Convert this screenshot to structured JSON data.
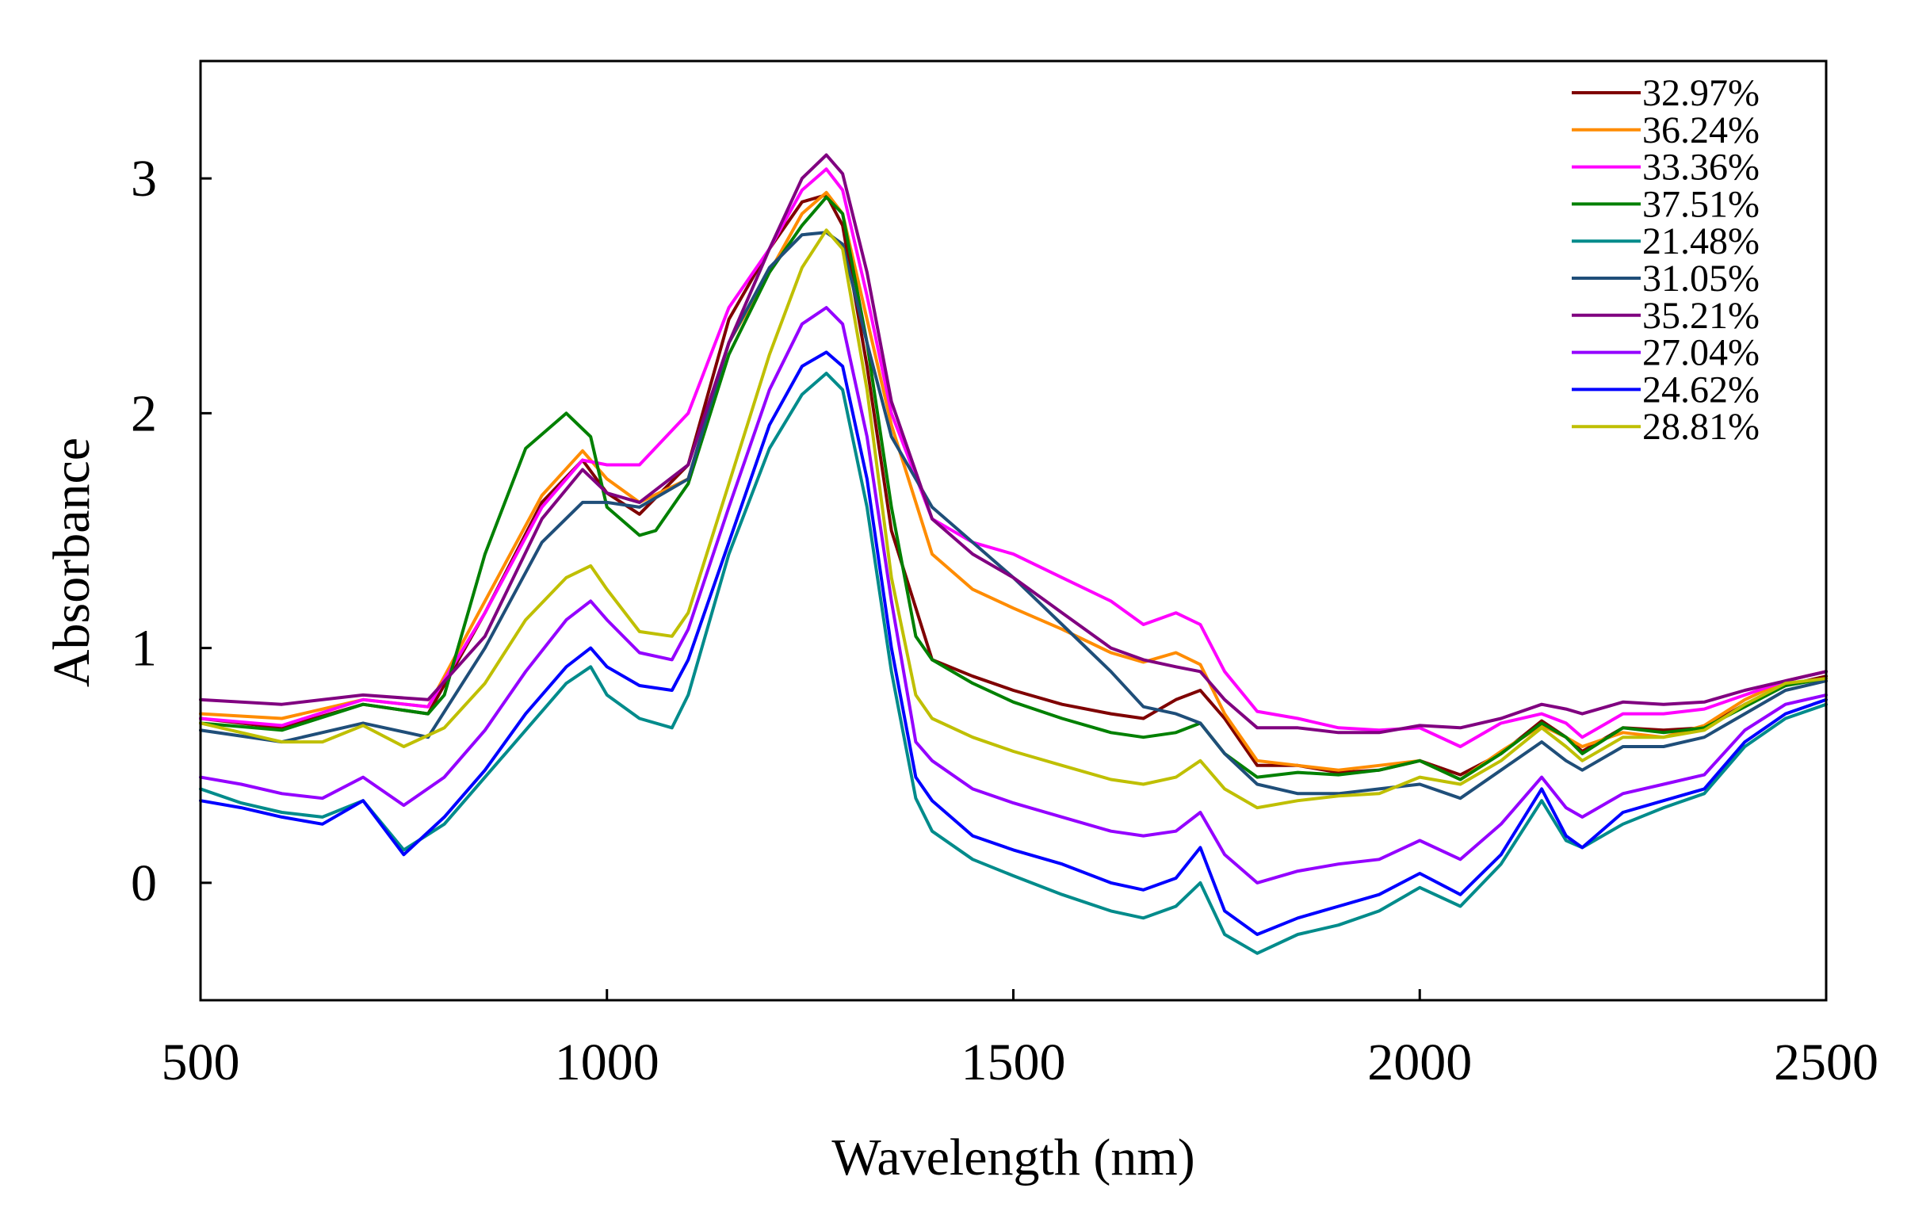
{
  "chart_data": {
    "type": "line",
    "title": "",
    "xlabel": "Wavelength  (nm)",
    "ylabel": "Absorbance",
    "xlim": [
      500,
      2500
    ],
    "ylim": [
      -0.5,
      3.5
    ],
    "xticks": [
      "500",
      "1000",
      "1500",
      "2000",
      "2500"
    ],
    "yticks": [
      "0",
      "1",
      "2",
      "3"
    ],
    "grid": false,
    "legend_position": "top-right",
    "series": [
      {
        "name": "32.97%",
        "color": "#7f0000",
        "x": [
          500,
          600,
          700,
          780,
          850,
          920,
          970,
          1000,
          1040,
          1100,
          1150,
          1200,
          1240,
          1270,
          1290,
          1320,
          1350,
          1400,
          1450,
          1500,
          1560,
          1620,
          1660,
          1700,
          1730,
          1760,
          1800,
          1850,
          1900,
          1950,
          2000,
          2050,
          2100,
          2150,
          2180,
          2200,
          2250,
          2300,
          2350,
          2400,
          2450,
          2500
        ],
        "y": [
          0.7,
          0.66,
          0.76,
          0.72,
          1.15,
          1.62,
          1.8,
          1.66,
          1.57,
          1.78,
          2.4,
          2.7,
          2.9,
          2.93,
          2.8,
          2.2,
          1.5,
          0.95,
          0.88,
          0.82,
          0.76,
          0.72,
          0.7,
          0.78,
          0.82,
          0.7,
          0.5,
          0.5,
          0.47,
          0.48,
          0.52,
          0.46,
          0.55,
          0.69,
          0.62,
          0.56,
          0.66,
          0.65,
          0.66,
          0.76,
          0.84,
          0.88
        ]
      },
      {
        "name": "36.24%",
        "color": "#ff8c00",
        "x": [
          500,
          600,
          700,
          780,
          850,
          920,
          970,
          1000,
          1040,
          1100,
          1150,
          1200,
          1240,
          1270,
          1290,
          1320,
          1350,
          1400,
          1450,
          1500,
          1560,
          1620,
          1660,
          1700,
          1730,
          1760,
          1800,
          1850,
          1900,
          1950,
          2000,
          2050,
          2100,
          2150,
          2180,
          2200,
          2250,
          2300,
          2350,
          2400,
          2450,
          2500
        ],
        "y": [
          0.72,
          0.7,
          0.78,
          0.75,
          1.2,
          1.65,
          1.84,
          1.72,
          1.62,
          1.72,
          2.3,
          2.6,
          2.85,
          2.94,
          2.85,
          2.4,
          1.95,
          1.4,
          1.25,
          1.17,
          1.08,
          0.98,
          0.94,
          0.98,
          0.93,
          0.72,
          0.52,
          0.5,
          0.48,
          0.5,
          0.52,
          0.44,
          0.56,
          0.67,
          0.62,
          0.58,
          0.64,
          0.62,
          0.67,
          0.78,
          0.86,
          0.9
        ]
      },
      {
        "name": "33.36%",
        "color": "#ff00ff",
        "x": [
          500,
          600,
          700,
          780,
          850,
          920,
          970,
          1000,
          1040,
          1100,
          1150,
          1200,
          1240,
          1270,
          1290,
          1320,
          1350,
          1400,
          1450,
          1500,
          1560,
          1620,
          1660,
          1700,
          1730,
          1760,
          1800,
          1850,
          1900,
          1950,
          2000,
          2050,
          2100,
          2150,
          2180,
          2200,
          2250,
          2300,
          2350,
          2400,
          2450,
          2500
        ],
        "y": [
          0.7,
          0.67,
          0.78,
          0.75,
          1.15,
          1.6,
          1.8,
          1.78,
          1.78,
          2.0,
          2.45,
          2.7,
          2.95,
          3.04,
          2.95,
          2.5,
          2.0,
          1.55,
          1.45,
          1.4,
          1.3,
          1.2,
          1.1,
          1.15,
          1.1,
          0.9,
          0.73,
          0.7,
          0.66,
          0.65,
          0.66,
          0.58,
          0.68,
          0.72,
          0.68,
          0.62,
          0.72,
          0.72,
          0.74,
          0.8,
          0.86,
          0.9
        ]
      },
      {
        "name": "37.51%",
        "color": "#008000",
        "x": [
          500,
          600,
          700,
          780,
          800,
          850,
          900,
          950,
          980,
          1000,
          1040,
          1060,
          1100,
          1150,
          1200,
          1240,
          1270,
          1290,
          1320,
          1350,
          1380,
          1400,
          1450,
          1500,
          1560,
          1620,
          1660,
          1700,
          1730,
          1760,
          1800,
          1850,
          1900,
          1950,
          2000,
          2050,
          2100,
          2150,
          2180,
          2200,
          2250,
          2300,
          2350,
          2400,
          2450,
          2500
        ],
        "y": [
          0.68,
          0.65,
          0.76,
          0.72,
          0.8,
          1.4,
          1.85,
          2.0,
          1.9,
          1.6,
          1.48,
          1.5,
          1.7,
          2.25,
          2.6,
          2.8,
          2.92,
          2.85,
          2.3,
          1.6,
          1.05,
          0.95,
          0.85,
          0.77,
          0.7,
          0.64,
          0.62,
          0.64,
          0.68,
          0.55,
          0.45,
          0.47,
          0.46,
          0.48,
          0.52,
          0.44,
          0.55,
          0.68,
          0.62,
          0.55,
          0.66,
          0.64,
          0.66,
          0.75,
          0.84,
          0.87
        ]
      },
      {
        "name": "21.48%",
        "color": "#008b8b",
        "x": [
          500,
          550,
          600,
          650,
          700,
          750,
          800,
          850,
          900,
          950,
          980,
          1000,
          1040,
          1080,
          1100,
          1150,
          1200,
          1240,
          1270,
          1290,
          1320,
          1350,
          1380,
          1400,
          1450,
          1500,
          1560,
          1620,
          1660,
          1700,
          1730,
          1760,
          1800,
          1850,
          1900,
          1950,
          2000,
          2050,
          2100,
          2150,
          2180,
          2200,
          2250,
          2300,
          2350,
          2400,
          2450,
          2500
        ],
        "y": [
          0.4,
          0.34,
          0.3,
          0.28,
          0.35,
          0.14,
          0.25,
          0.45,
          0.65,
          0.85,
          0.92,
          0.8,
          0.7,
          0.66,
          0.8,
          1.4,
          1.85,
          2.08,
          2.17,
          2.1,
          1.6,
          0.9,
          0.36,
          0.22,
          0.1,
          0.03,
          -0.05,
          -0.12,
          -0.15,
          -0.1,
          0.0,
          -0.22,
          -0.3,
          -0.22,
          -0.18,
          -0.12,
          -0.02,
          -0.1,
          0.08,
          0.35,
          0.18,
          0.15,
          0.25,
          0.32,
          0.38,
          0.58,
          0.7,
          0.76
        ]
      },
      {
        "name": "31.05%",
        "color": "#1f4e79",
        "x": [
          500,
          600,
          700,
          780,
          850,
          920,
          970,
          1000,
          1040,
          1100,
          1150,
          1200,
          1240,
          1270,
          1290,
          1320,
          1350,
          1400,
          1450,
          1500,
          1560,
          1620,
          1660,
          1700,
          1730,
          1760,
          1800,
          1850,
          1900,
          1950,
          2000,
          2050,
          2100,
          2150,
          2180,
          2200,
          2250,
          2300,
          2350,
          2400,
          2450,
          2500
        ],
        "y": [
          0.65,
          0.6,
          0.68,
          0.62,
          1.0,
          1.45,
          1.62,
          1.62,
          1.6,
          1.72,
          2.3,
          2.62,
          2.76,
          2.77,
          2.72,
          2.3,
          1.9,
          1.6,
          1.45,
          1.3,
          1.1,
          0.9,
          0.75,
          0.72,
          0.68,
          0.55,
          0.42,
          0.38,
          0.38,
          0.4,
          0.42,
          0.36,
          0.48,
          0.6,
          0.52,
          0.48,
          0.58,
          0.58,
          0.62,
          0.72,
          0.82,
          0.86
        ]
      },
      {
        "name": "35.21%",
        "color": "#800080",
        "x": [
          500,
          600,
          700,
          780,
          850,
          920,
          970,
          1000,
          1040,
          1100,
          1150,
          1200,
          1240,
          1270,
          1290,
          1320,
          1350,
          1400,
          1450,
          1500,
          1560,
          1620,
          1660,
          1700,
          1730,
          1760,
          1800,
          1850,
          1900,
          1950,
          2000,
          2050,
          2100,
          2150,
          2180,
          2200,
          2250,
          2300,
          2350,
          2400,
          2450,
          2500
        ],
        "y": [
          0.78,
          0.76,
          0.8,
          0.78,
          1.05,
          1.55,
          1.76,
          1.66,
          1.62,
          1.78,
          2.3,
          2.7,
          3.0,
          3.1,
          3.02,
          2.6,
          2.05,
          1.55,
          1.4,
          1.3,
          1.15,
          1.0,
          0.95,
          0.92,
          0.9,
          0.78,
          0.66,
          0.66,
          0.64,
          0.64,
          0.67,
          0.66,
          0.7,
          0.76,
          0.74,
          0.72,
          0.77,
          0.76,
          0.77,
          0.82,
          0.86,
          0.9
        ]
      },
      {
        "name": "27.04%",
        "color": "#9400ff",
        "x": [
          500,
          550,
          600,
          650,
          700,
          750,
          800,
          850,
          900,
          950,
          980,
          1000,
          1040,
          1080,
          1100,
          1150,
          1200,
          1240,
          1270,
          1290,
          1320,
          1350,
          1380,
          1400,
          1450,
          1500,
          1560,
          1620,
          1660,
          1700,
          1730,
          1760,
          1800,
          1850,
          1900,
          1950,
          2000,
          2050,
          2100,
          2150,
          2180,
          2200,
          2250,
          2300,
          2350,
          2400,
          2450,
          2500
        ],
        "y": [
          0.45,
          0.42,
          0.38,
          0.36,
          0.45,
          0.33,
          0.45,
          0.65,
          0.9,
          1.12,
          1.2,
          1.12,
          0.98,
          0.95,
          1.08,
          1.6,
          2.1,
          2.38,
          2.45,
          2.38,
          1.9,
          1.2,
          0.6,
          0.52,
          0.4,
          0.34,
          0.28,
          0.22,
          0.2,
          0.22,
          0.3,
          0.12,
          0.0,
          0.05,
          0.08,
          0.1,
          0.18,
          0.1,
          0.25,
          0.45,
          0.32,
          0.28,
          0.38,
          0.42,
          0.46,
          0.65,
          0.76,
          0.8
        ]
      },
      {
        "name": "24.62%",
        "color": "#0000ff",
        "x": [
          500,
          550,
          600,
          650,
          700,
          750,
          800,
          850,
          900,
          950,
          980,
          1000,
          1040,
          1080,
          1100,
          1150,
          1200,
          1240,
          1270,
          1290,
          1320,
          1350,
          1380,
          1400,
          1450,
          1500,
          1560,
          1620,
          1660,
          1700,
          1730,
          1760,
          1800,
          1850,
          1900,
          1950,
          2000,
          2050,
          2100,
          2150,
          2180,
          2200,
          2250,
          2300,
          2350,
          2400,
          2450,
          2500
        ],
        "y": [
          0.35,
          0.32,
          0.28,
          0.25,
          0.35,
          0.12,
          0.28,
          0.48,
          0.72,
          0.92,
          1.0,
          0.92,
          0.84,
          0.82,
          0.95,
          1.45,
          1.95,
          2.2,
          2.26,
          2.2,
          1.72,
          1.0,
          0.45,
          0.35,
          0.2,
          0.14,
          0.08,
          0.0,
          -0.03,
          0.02,
          0.15,
          -0.12,
          -0.22,
          -0.15,
          -0.1,
          -0.05,
          0.04,
          -0.05,
          0.12,
          0.4,
          0.2,
          0.15,
          0.3,
          0.35,
          0.4,
          0.6,
          0.72,
          0.78
        ]
      },
      {
        "name": "28.81%",
        "color": "#bfbf00",
        "x": [
          500,
          550,
          600,
          650,
          700,
          750,
          800,
          850,
          900,
          950,
          980,
          1000,
          1040,
          1080,
          1100,
          1150,
          1200,
          1240,
          1270,
          1290,
          1320,
          1350,
          1380,
          1400,
          1450,
          1500,
          1560,
          1620,
          1660,
          1700,
          1730,
          1760,
          1800,
          1850,
          1900,
          1950,
          2000,
          2050,
          2100,
          2150,
          2180,
          2200,
          2250,
          2300,
          2350,
          2400,
          2450,
          2500
        ],
        "y": [
          0.68,
          0.64,
          0.6,
          0.6,
          0.67,
          0.58,
          0.66,
          0.85,
          1.12,
          1.3,
          1.35,
          1.25,
          1.07,
          1.05,
          1.15,
          1.7,
          2.25,
          2.62,
          2.78,
          2.7,
          2.1,
          1.3,
          0.8,
          0.7,
          0.62,
          0.56,
          0.5,
          0.44,
          0.42,
          0.45,
          0.52,
          0.4,
          0.32,
          0.35,
          0.37,
          0.38,
          0.45,
          0.42,
          0.52,
          0.66,
          0.58,
          0.52,
          0.62,
          0.62,
          0.65,
          0.76,
          0.85,
          0.87
        ]
      }
    ]
  }
}
